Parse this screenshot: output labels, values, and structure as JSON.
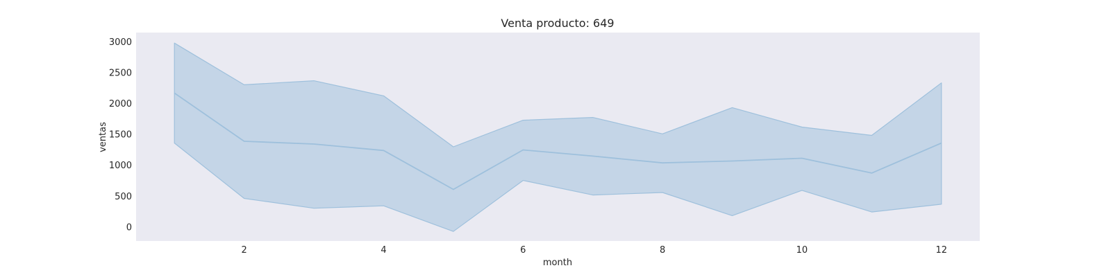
{
  "chart_data": {
    "type": "area",
    "title": "Venta producto: 649",
    "xlabel": "month",
    "ylabel": "ventas",
    "x": [
      1,
      2,
      3,
      4,
      5,
      6,
      7,
      8,
      9,
      10,
      11,
      12
    ],
    "series": [
      {
        "values": [
          2170,
          1390,
          1345,
          1240,
          610,
          1250,
          1150,
          1040,
          1070,
          1115,
          875,
          1360
        ],
        "lower": [
          1360,
          465,
          305,
          345,
          -70,
          755,
          520,
          560,
          185,
          595,
          245,
          370
        ],
        "upper": [
          2980,
          2305,
          2370,
          2125,
          1300,
          1730,
          1775,
          1510,
          1935,
          1620,
          1485,
          2335
        ]
      }
    ],
    "xticks": [
      2,
      4,
      6,
      8,
      10,
      12
    ],
    "yticks": [
      0,
      500,
      1000,
      1500,
      2000,
      2500,
      3000
    ],
    "xlim": [
      0.45,
      12.55
    ],
    "ylim": [
      -225,
      3150
    ],
    "grid": false,
    "colors": {
      "plot_background": "#eaeaf2",
      "line": "#9ec0dc",
      "band": "#9ec0dc"
    }
  }
}
